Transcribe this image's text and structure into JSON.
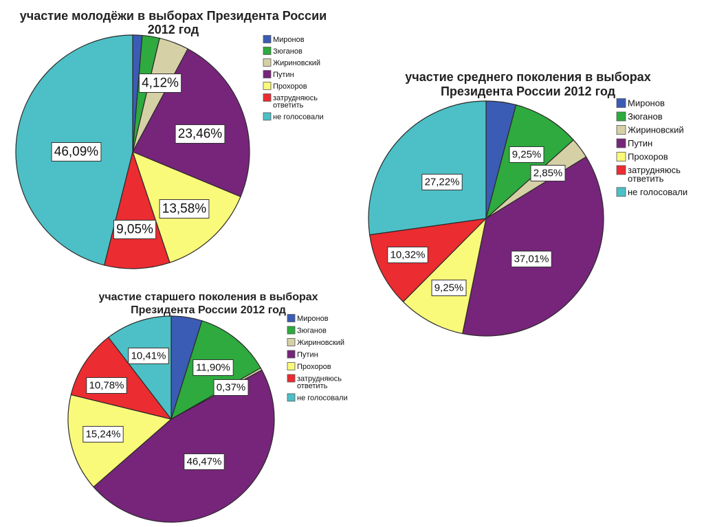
{
  "chart_data": [
    {
      "type": "pie",
      "title_lines": [
        "участие молодёжи в выборах Президента России",
        "2012 год"
      ],
      "categories": [
        "Миронов",
        "Зюганов",
        "Жириновский",
        "Путин",
        "Прохоров",
        "затрудняюсь ответить",
        "не голосовали"
      ],
      "legend_labels": [
        [
          "Миронов"
        ],
        [
          "Зюганов"
        ],
        [
          "Жириновский"
        ],
        [
          "Путин"
        ],
        [
          "Прохоров"
        ],
        [
          "затрудняюсь",
          "ответить"
        ],
        [
          "не голосовали"
        ]
      ],
      "values": [
        1.3,
        2.4,
        4.12,
        23.46,
        13.58,
        9.05,
        46.09
      ],
      "data_labels": [
        "",
        "",
        "4,12%",
        "23,46%",
        "13,58%",
        "9,05%",
        "46,09%"
      ],
      "colors": [
        "#3b5cb4",
        "#2eaa3e",
        "#d6d0a6",
        "#76257a",
        "#fafa7a",
        "#eb2c31",
        "#4cc0c6"
      ],
      "legend_position": "right"
    },
    {
      "type": "pie",
      "title_lines": [
        "участие среднего поколения в выборах",
        "Президента России 2012 год"
      ],
      "categories": [
        "Миронов",
        "Зюганов",
        "Жириновский",
        "Путин",
        "Прохоров",
        "затрудняюсь ответить",
        "не голосовали"
      ],
      "legend_labels": [
        [
          "Миронов"
        ],
        [
          "Зюганов"
        ],
        [
          "Жириновский"
        ],
        [
          "Путин"
        ],
        [
          "Прохоров"
        ],
        [
          "затрудняюсь",
          "ответить"
        ],
        [
          "не голосовали"
        ]
      ],
      "values": [
        4.1,
        9.25,
        2.85,
        37.01,
        9.25,
        10.32,
        27.22
      ],
      "data_labels": [
        "",
        "9,25%",
        "2,85%",
        "37,01%",
        "9,25%",
        "10,32%",
        "27,22%"
      ],
      "colors": [
        "#3b5cb4",
        "#2eaa3e",
        "#d6d0a6",
        "#76257a",
        "#fafa7a",
        "#eb2c31",
        "#4cc0c6"
      ],
      "legend_position": "right"
    },
    {
      "type": "pie",
      "title_lines": [
        "участие старшего поколения в выборах",
        "Президента России 2012 год"
      ],
      "categories": [
        "Миронов",
        "Зюганов",
        "Жириновский",
        "Путин",
        "Прохоров",
        "затрудняюсь ответить",
        "не голосовали"
      ],
      "legend_labels": [
        [
          "Миронов"
        ],
        [
          "Зюганов"
        ],
        [
          "Жириновский"
        ],
        [
          "Путин"
        ],
        [
          "Прохоров"
        ],
        [
          "затрудняюсь",
          "ответить"
        ],
        [
          "не голосовали"
        ]
      ],
      "values": [
        4.83,
        11.9,
        0.37,
        46.47,
        15.24,
        10.78,
        10.41
      ],
      "data_labels": [
        "",
        "11,90%",
        "0,37%",
        "46,47%",
        "15,24%",
        "10,78%",
        "10,41%"
      ],
      "colors": [
        "#3b5cb4",
        "#2eaa3e",
        "#d6d0a6",
        "#76257a",
        "#fafa7a",
        "#eb2c31",
        "#4cc0c6"
      ],
      "legend_position": "right"
    }
  ]
}
